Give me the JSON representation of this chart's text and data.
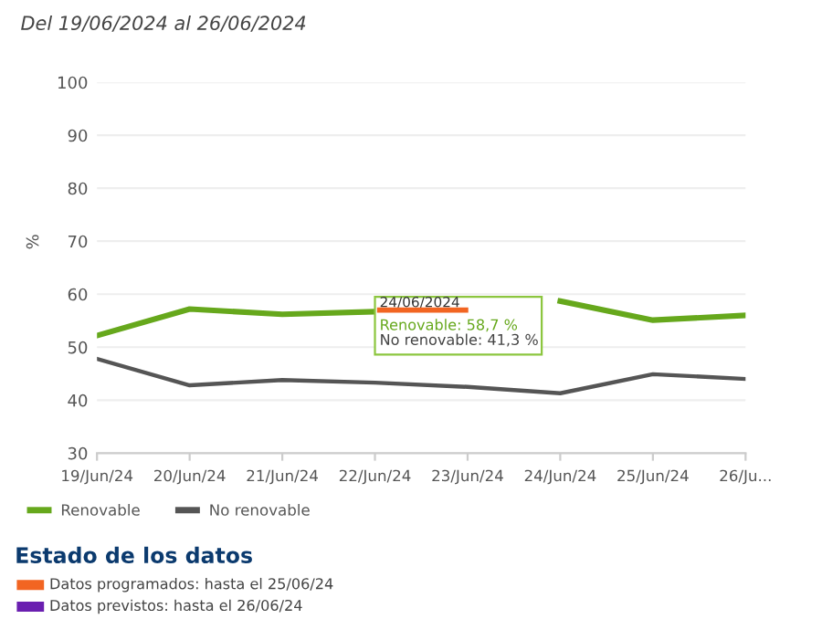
{
  "chart_data": {
    "type": "line",
    "title": "Del 19/06/2024 al 26/06/2024",
    "ylabel": "%",
    "categories": [
      "19/Jun/24",
      "20/Jun/24",
      "21/Jun/24",
      "22/Jun/24",
      "23/Jun/24",
      "24/Jun/24",
      "25/Jun/24",
      "26/Ju..."
    ],
    "series": [
      {
        "name": "Renovable",
        "color": "#66a81c",
        "values": [
          52.2,
          57.2,
          56.2,
          56.7,
          null,
          58.7,
          55.1,
          56.0
        ]
      },
      {
        "name": "No renovable",
        "color": "#555555",
        "values": [
          47.8,
          42.8,
          43.8,
          43.3,
          42.5,
          41.3,
          44.9,
          44.0
        ]
      }
    ],
    "ylim": [
      30,
      100
    ],
    "yticks": [
      30,
      40,
      50,
      60,
      70,
      80,
      90,
      100
    ],
    "grid": "y",
    "legend": "bottom left",
    "marker": "none",
    "line_style": "solid",
    "annotations": [
      "24/06/2024",
      "Renovable: 58,7 %",
      "No renovable: 41,3 %",
      "Estado de los datos",
      "Datos programados: hasta el 25/06/24",
      "Datos previstos: hasta el 26/06/24"
    ]
  }
}
